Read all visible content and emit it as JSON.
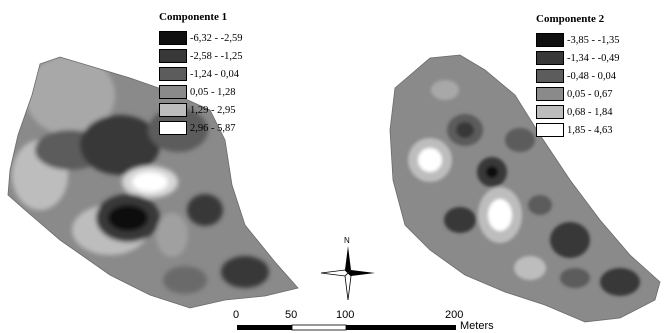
{
  "legend_left": {
    "title": "Componente 1",
    "classes": [
      {
        "label": "-6,32 - -2,59",
        "color": "#101010"
      },
      {
        "label": "-2,58 - -1,25",
        "color": "#383838"
      },
      {
        "label": "-1,24 - 0,04",
        "color": "#5c5c5c"
      },
      {
        "label": "0,05 - 1,28",
        "color": "#8a8a8a"
      },
      {
        "label": "1,29 - 2,95",
        "color": "#bdbdbd"
      },
      {
        "label": "2,96 - 5,87",
        "color": "#ffffff"
      }
    ]
  },
  "legend_right": {
    "title": "Componente 2",
    "classes": [
      {
        "label": "-3,85 - -1,35",
        "color": "#101010"
      },
      {
        "label": "-1,34 - -0,49",
        "color": "#383838"
      },
      {
        "label": "-0,48 - 0,04",
        "color": "#5c5c5c"
      },
      {
        "label": "0,05 - 0,67",
        "color": "#8a8a8a"
      },
      {
        "label": "0,68 - 1,84",
        "color": "#bdbdbd"
      },
      {
        "label": "1,85 - 4,63",
        "color": "#ffffff"
      }
    ]
  },
  "north_arrow": {
    "label": "N"
  },
  "scale_bar": {
    "ticks": [
      "0",
      "50",
      "100",
      "200"
    ],
    "unit": "Meters"
  }
}
